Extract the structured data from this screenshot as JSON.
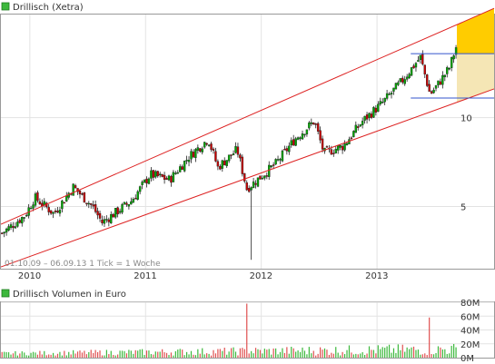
{
  "chart_data": [
    {
      "type": "candlestick",
      "title": "Drillisch (Xetra)",
      "legend_color": "#3cb83c",
      "x_ticks": [
        "2010",
        "2011",
        "2012",
        "2013"
      ],
      "y_ticks": [
        5,
        10
      ],
      "ylim": [
        1.5,
        15.8
      ],
      "period_text": "01.10.09 – 06.09.13   1 Tick = 1 Woche",
      "colors": {
        "up": "#00aa00",
        "down": "#cc0000",
        "channel": "#dd2222",
        "target": "#3355cc",
        "forecast_fill": "#f5e6b5",
        "forecast_top": "#ffcc00"
      },
      "weekly_close_anchors": [
        {
          "date": "2009-10",
          "close": 3.5
        },
        {
          "date": "2009-12",
          "close": 4.5
        },
        {
          "date": "2010-01",
          "close": 5.5
        },
        {
          "date": "2010-03",
          "close": 4.6
        },
        {
          "date": "2010-05",
          "close": 6.1
        },
        {
          "date": "2010-07",
          "close": 5.0
        },
        {
          "date": "2010-08",
          "close": 4.1
        },
        {
          "date": "2010-11",
          "close": 5.3
        },
        {
          "date": "2011-01",
          "close": 6.8
        },
        {
          "date": "2011-03",
          "close": 6.5
        },
        {
          "date": "2011-05",
          "close": 7.8
        },
        {
          "date": "2011-07",
          "close": 8.8
        },
        {
          "date": "2011-08",
          "close": 7.2
        },
        {
          "date": "2011-10",
          "close": 8.2
        },
        {
          "date": "2011-11",
          "close": 6.0
        },
        {
          "date": "2012-02",
          "close": 7.4
        },
        {
          "date": "2012-04",
          "close": 8.8
        },
        {
          "date": "2012-06",
          "close": 9.8
        },
        {
          "date": "2012-07",
          "close": 8.0
        },
        {
          "date": "2012-09",
          "close": 8.4
        },
        {
          "date": "2012-11",
          "close": 9.8
        },
        {
          "date": "2013-01",
          "close": 10.8
        },
        {
          "date": "2013-03",
          "close": 12.0
        },
        {
          "date": "2013-05",
          "close": 13.4
        },
        {
          "date": "2013-06",
          "close": 11.3
        },
        {
          "date": "2013-07",
          "close": 12.0
        },
        {
          "date": "2013-08",
          "close": 12.8
        },
        {
          "date": "2013-09",
          "close": 14.0
        }
      ],
      "notable_low": {
        "date": "2011-11",
        "value": 2.0
      },
      "target_levels": [
        13.6,
        11.1
      ]
    },
    {
      "type": "bar",
      "title": "Drillisch Volumen in Euro",
      "legend_color": "#3cb83c",
      "y_ticks": [
        "0M",
        "20M",
        "40M",
        "60M",
        "80M"
      ],
      "ylim": [
        0,
        80
      ],
      "typical_volume_range": [
        3,
        15
      ],
      "spikes": [
        {
          "date": "2011-11",
          "value": 78
        },
        {
          "date": "2013-06",
          "value": 58
        },
        {
          "date": "2013-09",
          "value": 55
        }
      ]
    }
  ]
}
